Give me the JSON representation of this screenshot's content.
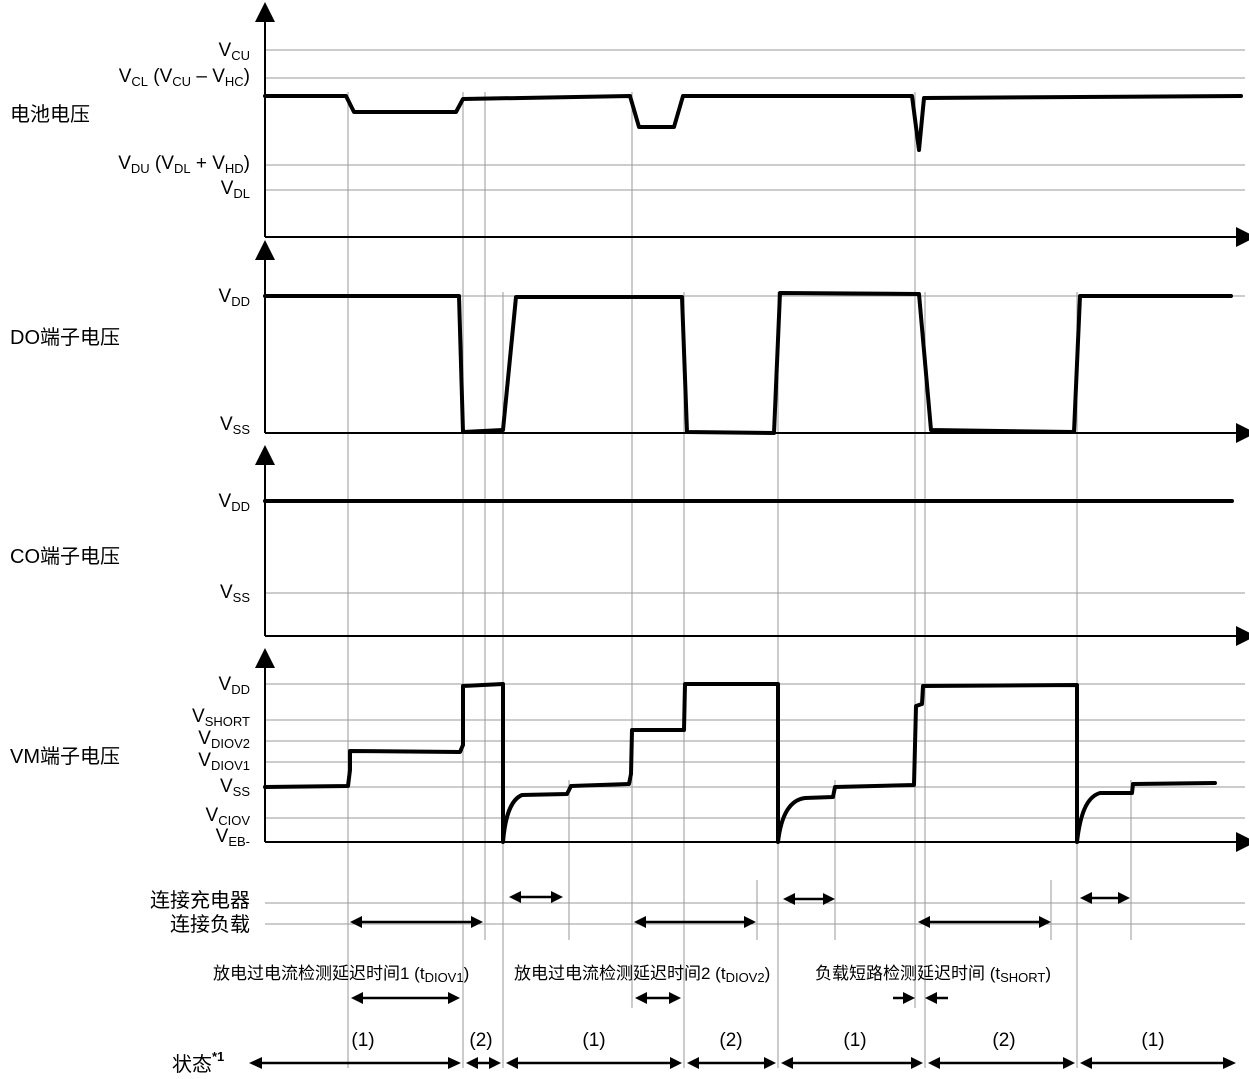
{
  "sections": {
    "battery": "电池电压",
    "do_pin": "DO端子电压",
    "co_pin": "CO端子电压",
    "vm_pin": "VM端子电压"
  },
  "battery_levels": {
    "vcu": {
      "base": "V",
      "sub": "CU"
    },
    "vcl": {
      "p1": "V",
      "s1": "CL",
      "p2": " (V",
      "s2": "CU",
      "p3": " – V",
      "s3": "HC",
      "p4": ")"
    },
    "vdu": {
      "p1": "V",
      "s1": "DU",
      "p2": " (V",
      "s2": "DL",
      "p3": " + V",
      "s3": "HD",
      "p4": ")"
    },
    "vdl": {
      "base": "V",
      "sub": "DL"
    }
  },
  "do_levels": {
    "vdd": {
      "base": "V",
      "sub": "DD"
    },
    "vss": {
      "base": "V",
      "sub": "SS"
    }
  },
  "co_levels": {
    "vdd": {
      "base": "V",
      "sub": "DD"
    },
    "vss": {
      "base": "V",
      "sub": "SS"
    }
  },
  "vm_levels": {
    "vdd": {
      "base": "V",
      "sub": "DD"
    },
    "vshort": {
      "base": "V",
      "sub": "SHORT"
    },
    "vdiov2": {
      "base": "V",
      "sub": "DIOV2"
    },
    "vdiov1": {
      "base": "V",
      "sub": "DIOV1"
    },
    "vss": {
      "base": "V",
      "sub": "SS"
    },
    "vciov": {
      "base": "V",
      "sub": "CIOV"
    },
    "veb": {
      "base": "V",
      "sub": "EB-"
    }
  },
  "connections": {
    "charger": "连接充电器",
    "load": "连接负载"
  },
  "delays": {
    "d1": {
      "text": "放电过电流检测延迟时间1 (t",
      "sub": "DIOV1",
      "close": ")"
    },
    "d2": {
      "text": "放电过电流检测延迟时间2 (t",
      "sub": "DIOV2",
      "close": ")"
    },
    "d3": {
      "text": "负载短路检测延迟时间 (t",
      "sub": "SHORT",
      "close": ")"
    }
  },
  "state": {
    "label": "状态",
    "footnote": "*1",
    "items": [
      "(1)",
      "(2)",
      "(1)",
      "(2)",
      "(1)",
      "(2)",
      "(1)"
    ]
  }
}
